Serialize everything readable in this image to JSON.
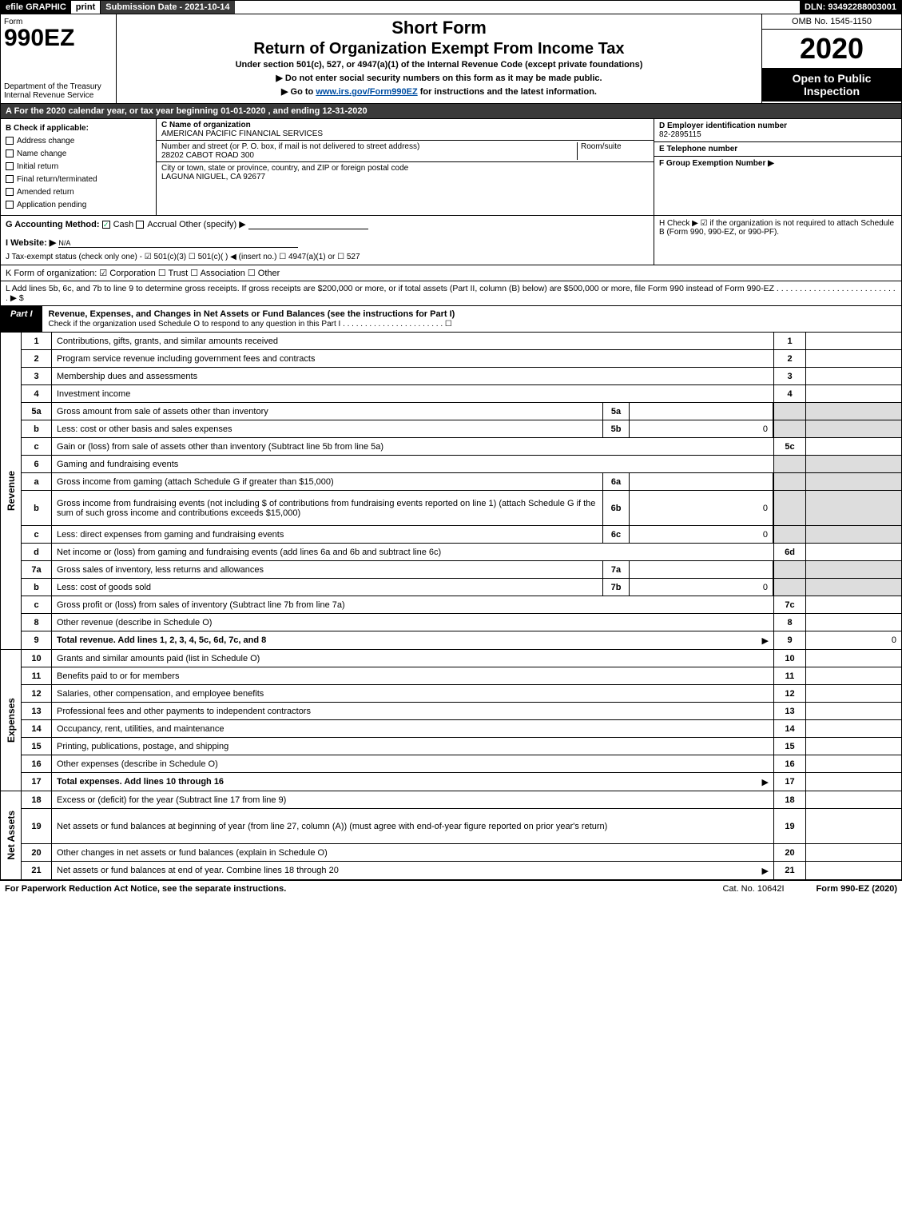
{
  "topbar": {
    "efile": "efile GRAPHIC",
    "print": "print",
    "subdate": "Submission Date - 2021-10-14",
    "dln": "DLN: 93492288003001"
  },
  "header": {
    "form_label": "Form",
    "form_number": "990EZ",
    "short_form": "Short Form",
    "return_title": "Return of Organization Exempt From Income Tax",
    "under_section": "Under section 501(c), 527, or 4947(a)(1) of the Internal Revenue Code (except private foundations)",
    "notice1": "▶ Do not enter social security numbers on this form as it may be made public.",
    "notice2_prefix": "▶ Go to ",
    "notice2_link": "www.irs.gov/Form990EZ",
    "notice2_suffix": " for instructions and the latest information.",
    "dept1": "Department of the Treasury",
    "dept2": "Internal Revenue Service",
    "omb": "OMB No. 1545-1150",
    "year": "2020",
    "open_public": "Open to Public Inspection"
  },
  "row_a": "A For the 2020 calendar year, or tax year beginning 01-01-2020 , and ending 12-31-2020",
  "col_b": {
    "title": "B Check if applicable:",
    "items": [
      "Address change",
      "Name change",
      "Initial return",
      "Final return/terminated",
      "Amended return",
      "Application pending"
    ]
  },
  "col_c": {
    "name_label": "C Name of organization",
    "name": "AMERICAN PACIFIC FINANCIAL SERVICES",
    "street_label": "Number and street (or P. O. box, if mail is not delivered to street address)",
    "room_label": "Room/suite",
    "street": "28202 CABOT ROAD 300",
    "city_label": "City or town, state or province, country, and ZIP or foreign postal code",
    "city": "LAGUNA NIGUEL, CA  92677"
  },
  "col_d": {
    "ein_label": "D Employer identification number",
    "ein": "82-2895115",
    "phone_label": "E Telephone number",
    "group_label": "F Group Exemption Number   ▶"
  },
  "ghi": {
    "g": "G Accounting Method:",
    "g_cash": "Cash",
    "g_accrual": "Accrual",
    "g_other": "Other (specify) ▶",
    "h": "H Check ▶ ☑ if the organization is not required to attach Schedule B (Form 990, 990-EZ, or 990-PF).",
    "i": "I Website: ▶",
    "i_val": "N/A",
    "j": "J Tax-exempt status (check only one) - ☑ 501(c)(3) ☐ 501(c)(  ) ◀ (insert no.) ☐ 4947(a)(1) or ☐ 527"
  },
  "item_k": "K Form of organization: ☑ Corporation  ☐ Trust  ☐ Association  ☐ Other",
  "item_l": "L Add lines 5b, 6c, and 7b to line 9 to determine gross receipts. If gross receipts are $200,000 or more, or if total assets (Part II, column (B) below) are $500,000 or more, file Form 990 instead of Form 990-EZ  .   .   .   .   .   .   .   .   .   .   .   .   .   .   .   .   .   .   .   .   .   .   .   .   .   .   . ▶ $",
  "part1": {
    "tab": "Part I",
    "title": "Revenue, Expenses, and Changes in Net Assets or Fund Balances (see the instructions for Part I)",
    "check": "Check if the organization used Schedule O to respond to any question in this Part I . . . . . . . . . . . . . . . . . . . . . . . ☐"
  },
  "sides": {
    "revenue": "Revenue",
    "expenses": "Expenses",
    "net_assets": "Net Assets"
  },
  "lines": [
    {
      "n": "1",
      "d": "Contributions, gifts, grants, and similar amounts received",
      "rn": "1",
      "ra": ""
    },
    {
      "n": "2",
      "d": "Program service revenue including government fees and contracts",
      "rn": "2",
      "ra": ""
    },
    {
      "n": "3",
      "d": "Membership dues and assessments",
      "rn": "3",
      "ra": ""
    },
    {
      "n": "4",
      "d": "Investment income",
      "rn": "4",
      "ra": ""
    },
    {
      "n": "5a",
      "d": "Gross amount from sale of assets other than inventory",
      "in": "5a",
      "ia": "",
      "rn": "",
      "ra": "",
      "grey": true
    },
    {
      "n": "b",
      "d": "Less: cost or other basis and sales expenses",
      "in": "5b",
      "ia": "0",
      "rn": "",
      "ra": "",
      "grey": true
    },
    {
      "n": "c",
      "d": "Gain or (loss) from sale of assets other than inventory (Subtract line 5b from line 5a)",
      "rn": "5c",
      "ra": ""
    },
    {
      "n": "6",
      "d": "Gaming and fundraising events",
      "rn": "",
      "ra": "",
      "grey": true,
      "noright": true
    },
    {
      "n": "a",
      "d": "Gross income from gaming (attach Schedule G if greater than $15,000)",
      "in": "6a",
      "ia": "",
      "rn": "",
      "ra": "",
      "grey": true
    },
    {
      "n": "b",
      "d": "Gross income from fundraising events (not including $                  of contributions from fundraising events reported on line 1) (attach Schedule G if the sum of such gross income and contributions exceeds $15,000)",
      "in": "6b",
      "ia": "0",
      "rn": "",
      "ra": "",
      "grey": true,
      "tall": true
    },
    {
      "n": "c",
      "d": "Less: direct expenses from gaming and fundraising events",
      "in": "6c",
      "ia": "0",
      "rn": "",
      "ra": "",
      "grey": true
    },
    {
      "n": "d",
      "d": "Net income or (loss) from gaming and fundraising events (add lines 6a and 6b and subtract line 6c)",
      "rn": "6d",
      "ra": ""
    },
    {
      "n": "7a",
      "d": "Gross sales of inventory, less returns and allowances",
      "in": "7a",
      "ia": "",
      "rn": "",
      "ra": "",
      "grey": true
    },
    {
      "n": "b",
      "d": "Less: cost of goods sold",
      "in": "7b",
      "ia": "0",
      "rn": "",
      "ra": "",
      "grey": true
    },
    {
      "n": "c",
      "d": "Gross profit or (loss) from sales of inventory (Subtract line 7b from line 7a)",
      "rn": "7c",
      "ra": ""
    },
    {
      "n": "8",
      "d": "Other revenue (describe in Schedule O)",
      "rn": "8",
      "ra": ""
    },
    {
      "n": "9",
      "d": "Total revenue. Add lines 1, 2, 3, 4, 5c, 6d, 7c, and 8",
      "rn": "9",
      "ra": "0",
      "bold": true,
      "arrow": true
    }
  ],
  "exp_lines": [
    {
      "n": "10",
      "d": "Grants and similar amounts paid (list in Schedule O)",
      "rn": "10",
      "ra": ""
    },
    {
      "n": "11",
      "d": "Benefits paid to or for members",
      "rn": "11",
      "ra": ""
    },
    {
      "n": "12",
      "d": "Salaries, other compensation, and employee benefits",
      "rn": "12",
      "ra": ""
    },
    {
      "n": "13",
      "d": "Professional fees and other payments to independent contractors",
      "rn": "13",
      "ra": ""
    },
    {
      "n": "14",
      "d": "Occupancy, rent, utilities, and maintenance",
      "rn": "14",
      "ra": ""
    },
    {
      "n": "15",
      "d": "Printing, publications, postage, and shipping",
      "rn": "15",
      "ra": ""
    },
    {
      "n": "16",
      "d": "Other expenses (describe in Schedule O)",
      "rn": "16",
      "ra": ""
    },
    {
      "n": "17",
      "d": "Total expenses. Add lines 10 through 16",
      "rn": "17",
      "ra": "",
      "bold": true,
      "arrow": true
    }
  ],
  "na_lines": [
    {
      "n": "18",
      "d": "Excess or (deficit) for the year (Subtract line 17 from line 9)",
      "rn": "18",
      "ra": ""
    },
    {
      "n": "19",
      "d": "Net assets or fund balances at beginning of year (from line 27, column (A)) (must agree with end-of-year figure reported on prior year's return)",
      "rn": "19",
      "ra": "",
      "tall": true
    },
    {
      "n": "20",
      "d": "Other changes in net assets or fund balances (explain in Schedule O)",
      "rn": "20",
      "ra": ""
    },
    {
      "n": "21",
      "d": "Net assets or fund balances at end of year. Combine lines 18 through 20",
      "rn": "21",
      "ra": "",
      "arrow": true
    }
  ],
  "footer": {
    "left": "For Paperwork Reduction Act Notice, see the separate instructions.",
    "mid": "Cat. No. 10642I",
    "right": "Form 990-EZ (2020)"
  },
  "colors": {
    "header_bg": "#3a3a3a",
    "black": "#000000",
    "link": "#004ea2",
    "grey_cell": "#dddddd",
    "check_green": "#00aa55"
  }
}
